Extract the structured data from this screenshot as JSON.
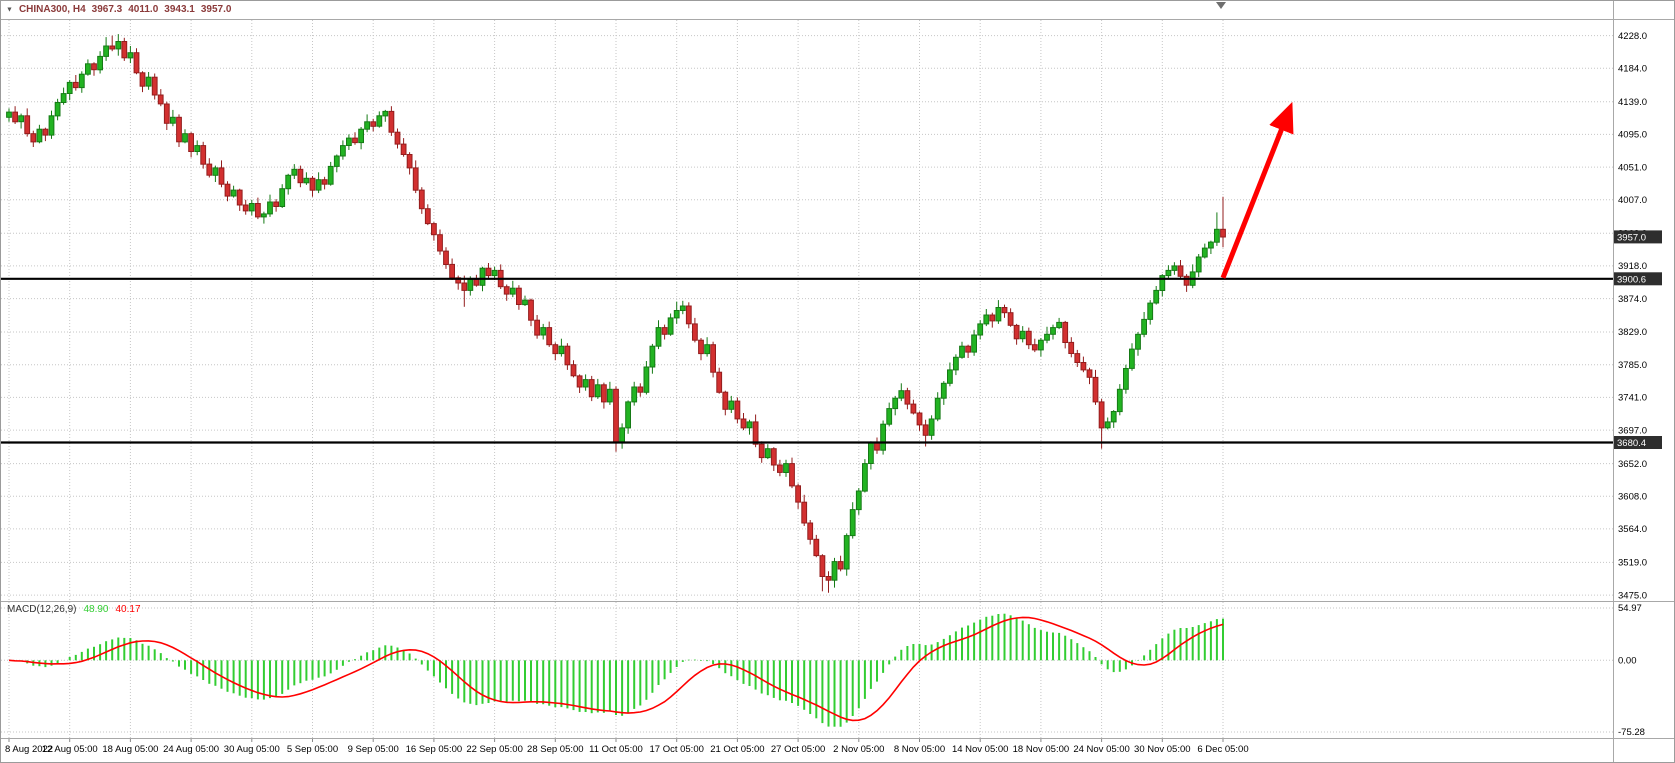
{
  "header": {
    "menu_icon": "▼",
    "symbol_period": "CHINA300, H4",
    "open": "3967.3",
    "high": "4011.0",
    "low": "3943.1",
    "close": "3957.0",
    "color": "#8b3a3a"
  },
  "macd_panel": {
    "name": "MACD(12,26,9)",
    "value_main": "48.90",
    "value_signal": "40.17"
  },
  "colors": {
    "bull": "#22b322",
    "bull_border": "#157a15",
    "bear": "#d23030",
    "bear_border": "#931d1d",
    "grid": "#c6c6c6",
    "hline": "#000000",
    "arrow": "#ff0000",
    "macd_hist": "#32cd32",
    "macd_signal": "#ff0000",
    "tag_bg": "#2e2e2e",
    "axis_text": "#000000"
  },
  "chart_data": {
    "type": "candlestick",
    "title": "CHINA300, H4",
    "symbol": "CHINA300",
    "timeframe": "H4",
    "last_bar_ohlc": {
      "open": 3967.3,
      "high": 4011.0,
      "low": 3943.1,
      "close": 3957.0
    },
    "ylim": [
      3467,
      4249
    ],
    "grid": true,
    "price_ticks": [
      4228,
      4184,
      4139,
      4095,
      4051,
      4007,
      3962,
      3918,
      3874,
      3829,
      3785,
      3741,
      3697,
      3652,
      3608,
      3564,
      3519,
      3475
    ],
    "time_axis": [
      {
        "text": "8 Aug 2022",
        "index": 0
      },
      {
        "text": "12 Aug 05:00",
        "index": 10
      },
      {
        "text": "18 Aug 05:00",
        "index": 20
      },
      {
        "text": "24 Aug 05:00",
        "index": 30
      },
      {
        "text": "30 Aug 05:00",
        "index": 40
      },
      {
        "text": "5 Sep 05:00",
        "index": 50
      },
      {
        "text": "9 Sep 05:00",
        "index": 60
      },
      {
        "text": "16 Sep 05:00",
        "index": 70
      },
      {
        "text": "22 Sep 05:00",
        "index": 80
      },
      {
        "text": "28 Sep 05:00",
        "index": 90
      },
      {
        "text": "11 Oct 05:00",
        "index": 100
      },
      {
        "text": "17 Oct 05:00",
        "index": 110
      },
      {
        "text": "21 Oct 05:00",
        "index": 120
      },
      {
        "text": "27 Oct 05:00",
        "index": 130
      },
      {
        "text": "2 Nov 05:00",
        "index": 140
      },
      {
        "text": "8 Nov 05:00",
        "index": 150
      },
      {
        "text": "14 Nov 05:00",
        "index": 160
      },
      {
        "text": "18 Nov 05:00",
        "index": 170
      },
      {
        "text": "24 Nov 05:00",
        "index": 180
      },
      {
        "text": "30 Nov 05:00",
        "index": 190
      },
      {
        "text": "6 Dec 05:00",
        "index": 200
      }
    ],
    "hlines": [
      {
        "price": 3900.6,
        "label": "3900.6"
      },
      {
        "price": 3680.4,
        "label": "3680.4"
      }
    ],
    "current_price": {
      "price": 3957.0,
      "label": "3957.0"
    },
    "arrow": {
      "from": {
        "index": 200,
        "price": 3902
      },
      "to": {
        "index": 211,
        "price": 4130
      }
    },
    "macd": {
      "params": "12,26,9",
      "last_macd": 48.9,
      "last_signal": 40.17,
      "scale_max": 54.97,
      "scale_min": -75.28,
      "axis_labels": [
        "54.97",
        "0.00",
        "-75.28"
      ]
    },
    "candles": [
      [
        4118,
        4130,
        4112,
        4125
      ],
      [
        4125,
        4133,
        4109,
        4112
      ],
      [
        4112,
        4123,
        4103,
        4120
      ],
      [
        4120,
        4130,
        4092,
        4096
      ],
      [
        4096,
        4100,
        4078,
        4085
      ],
      [
        4085,
        4108,
        4083,
        4102
      ],
      [
        4102,
        4104,
        4086,
        4094
      ],
      [
        4094,
        4127,
        4089,
        4120
      ],
      [
        4120,
        4143,
        4114,
        4138
      ],
      [
        4138,
        4158,
        4135,
        4150
      ],
      [
        4150,
        4168,
        4141,
        4165
      ],
      [
        4165,
        4175,
        4154,
        4158
      ],
      [
        4158,
        4180,
        4151,
        4176
      ],
      [
        4176,
        4196,
        4174,
        4190
      ],
      [
        4190,
        4192,
        4174,
        4182
      ],
      [
        4182,
        4207,
        4177,
        4200
      ],
      [
        4200,
        4226,
        4194,
        4214
      ],
      [
        4214,
        4228,
        4207,
        4210
      ],
      [
        4210,
        4230,
        4201,
        4220
      ],
      [
        4220,
        4225,
        4194,
        4198
      ],
      [
        4198,
        4214,
        4191,
        4205
      ],
      [
        4205,
        4211,
        4176,
        4178
      ],
      [
        4178,
        4180,
        4152,
        4160
      ],
      [
        4160,
        4179,
        4155,
        4172
      ],
      [
        4172,
        4177,
        4142,
        4148
      ],
      [
        4148,
        4156,
        4133,
        4136
      ],
      [
        4136,
        4139,
        4101,
        4110
      ],
      [
        4110,
        4128,
        4106,
        4118
      ],
      [
        4118,
        4122,
        4078,
        4085
      ],
      [
        4085,
        4102,
        4083,
        4096
      ],
      [
        4096,
        4098,
        4064,
        4072
      ],
      [
        4072,
        4087,
        4067,
        4080
      ],
      [
        4080,
        4085,
        4049,
        4055
      ],
      [
        4055,
        4063,
        4037,
        4040
      ],
      [
        4040,
        4053,
        4031,
        4050
      ],
      [
        4050,
        4060,
        4024,
        4028
      ],
      [
        4028,
        4032,
        4005,
        4012
      ],
      [
        4012,
        4026,
        4010,
        4020
      ],
      [
        4020,
        4022,
        3992,
        4000
      ],
      [
        4000,
        4007,
        3987,
        3992
      ],
      [
        3992,
        4007,
        3986,
        4002
      ],
      [
        4002,
        4010,
        3981,
        3984
      ],
      [
        3984,
        3991,
        3975,
        3988
      ],
      [
        3988,
        4014,
        3984,
        4004
      ],
      [
        4004,
        4008,
        3991,
        3998
      ],
      [
        3998,
        4028,
        3996,
        4022
      ],
      [
        4022,
        4042,
        4014,
        4040
      ],
      [
        4040,
        4055,
        4035,
        4048
      ],
      [
        4048,
        4053,
        4024,
        4030
      ],
      [
        4030,
        4044,
        4027,
        4036
      ],
      [
        4036,
        4039,
        4011,
        4020
      ],
      [
        4020,
        4044,
        4016,
        4034
      ],
      [
        4034,
        4038,
        4021,
        4028
      ],
      [
        4028,
        4058,
        4026,
        4052
      ],
      [
        4052,
        4068,
        4044,
        4066
      ],
      [
        4066,
        4087,
        4061,
        4080
      ],
      [
        4080,
        4095,
        4074,
        4090
      ],
      [
        4090,
        4098,
        4081,
        4084
      ],
      [
        4084,
        4105,
        4075,
        4102
      ],
      [
        4102,
        4122,
        4098,
        4112
      ],
      [
        4112,
        4116,
        4099,
        4106
      ],
      [
        4106,
        4126,
        4104,
        4120
      ],
      [
        4120,
        4128,
        4112,
        4126
      ],
      [
        4126,
        4133,
        4093,
        4098
      ],
      [
        4098,
        4103,
        4076,
        4082
      ],
      [
        4082,
        4090,
        4065,
        4068
      ],
      [
        4068,
        4071,
        4041,
        4050
      ],
      [
        4050,
        4060,
        4016,
        4020
      ],
      [
        4020,
        4024,
        3988,
        3995
      ],
      [
        3995,
        4001,
        3973,
        3975
      ],
      [
        3975,
        3977,
        3952,
        3960
      ],
      [
        3960,
        3967,
        3933,
        3938
      ],
      [
        3938,
        3943,
        3914,
        3920
      ],
      [
        3920,
        3928,
        3899,
        3902
      ],
      [
        3902,
        3905,
        3886,
        3895
      ],
      [
        3895,
        3905,
        3863,
        3885
      ],
      [
        3885,
        3904,
        3878,
        3900
      ],
      [
        3900,
        3906,
        3890,
        3892
      ],
      [
        3892,
        3917,
        3884,
        3915
      ],
      [
        3915,
        3922,
        3900,
        3905
      ],
      [
        3905,
        3917,
        3899,
        3912
      ],
      [
        3912,
        3920,
        3887,
        3890
      ],
      [
        3890,
        3893,
        3871,
        3880
      ],
      [
        3880,
        3898,
        3876,
        3888
      ],
      [
        3888,
        3892,
        3859,
        3866
      ],
      [
        3866,
        3878,
        3864,
        3872
      ],
      [
        3872,
        3874,
        3837,
        3845
      ],
      [
        3845,
        3852,
        3820,
        3825
      ],
      [
        3825,
        3840,
        3819,
        3835
      ],
      [
        3835,
        3843,
        3809,
        3812
      ],
      [
        3812,
        3815,
        3791,
        3800
      ],
      [
        3800,
        3820,
        3796,
        3810
      ],
      [
        3810,
        3814,
        3778,
        3785
      ],
      [
        3785,
        3791,
        3768,
        3770
      ],
      [
        3770,
        3772,
        3747,
        3755
      ],
      [
        3755,
        3772,
        3750,
        3765
      ],
      [
        3765,
        3770,
        3736,
        3742
      ],
      [
        3742,
        3766,
        3739,
        3758
      ],
      [
        3758,
        3761,
        3726,
        3735
      ],
      [
        3735,
        3762,
        3731,
        3752
      ],
      [
        3752,
        3756,
        3668,
        3680
      ],
      [
        3680,
        3706,
        3672,
        3700
      ],
      [
        3700,
        3737,
        3692,
        3735
      ],
      [
        3735,
        3762,
        3730,
        3755
      ],
      [
        3755,
        3760,
        3742,
        3748
      ],
      [
        3748,
        3790,
        3745,
        3782
      ],
      [
        3782,
        3813,
        3773,
        3810
      ],
      [
        3810,
        3845,
        3806,
        3835
      ],
      [
        3835,
        3839,
        3819,
        3826
      ],
      [
        3826,
        3854,
        3824,
        3848
      ],
      [
        3848,
        3870,
        3840,
        3858
      ],
      [
        3858,
        3871,
        3853,
        3864
      ],
      [
        3864,
        3869,
        3834,
        3840
      ],
      [
        3840,
        3848,
        3815,
        3818
      ],
      [
        3818,
        3821,
        3791,
        3800
      ],
      [
        3800,
        3822,
        3796,
        3812
      ],
      [
        3812,
        3816,
        3768,
        3775
      ],
      [
        3775,
        3781,
        3746,
        3748
      ],
      [
        3748,
        3750,
        3717,
        3725
      ],
      [
        3725,
        3743,
        3720,
        3736
      ],
      [
        3736,
        3741,
        3706,
        3712
      ],
      [
        3712,
        3720,
        3697,
        3700
      ],
      [
        3700,
        3711,
        3691,
        3708
      ],
      [
        3708,
        3718,
        3674,
        3678
      ],
      [
        3678,
        3682,
        3653,
        3660
      ],
      [
        3660,
        3678,
        3658,
        3672
      ],
      [
        3672,
        3674,
        3642,
        3650
      ],
      [
        3650,
        3657,
        3635,
        3640
      ],
      [
        3640,
        3657,
        3634,
        3652
      ],
      [
        3652,
        3660,
        3619,
        3622
      ],
      [
        3622,
        3625,
        3591,
        3600
      ],
      [
        3600,
        3610,
        3568,
        3572
      ],
      [
        3572,
        3576,
        3543,
        3550
      ],
      [
        3550,
        3556,
        3526,
        3528
      ],
      [
        3528,
        3530,
        3480,
        3500
      ],
      [
        3500,
        3507,
        3478,
        3495
      ],
      [
        3495,
        3525,
        3485,
        3520
      ],
      [
        3520,
        3528,
        3507,
        3510
      ],
      [
        3510,
        3558,
        3501,
        3555
      ],
      [
        3555,
        3600,
        3551,
        3590
      ],
      [
        3590,
        3619,
        3583,
        3615
      ],
      [
        3615,
        3658,
        3613,
        3652
      ],
      [
        3652,
        3682,
        3644,
        3680
      ],
      [
        3680,
        3687,
        3665,
        3670
      ],
      [
        3670,
        3710,
        3664,
        3705
      ],
      [
        3705,
        3734,
        3702,
        3726
      ],
      [
        3726,
        3743,
        3717,
        3740
      ],
      [
        3740,
        3760,
        3736,
        3750
      ],
      [
        3750,
        3754,
        3725,
        3732
      ],
      [
        3732,
        3738,
        3718,
        3720
      ],
      [
        3720,
        3722,
        3696,
        3704
      ],
      [
        3704,
        3711,
        3675,
        3690
      ],
      [
        3690,
        3717,
        3684,
        3712
      ],
      [
        3712,
        3748,
        3709,
        3740
      ],
      [
        3740,
        3763,
        3731,
        3760
      ],
      [
        3760,
        3788,
        3756,
        3778
      ],
      [
        3778,
        3799,
        3771,
        3795
      ],
      [
        3795,
        3816,
        3793,
        3810
      ],
      [
        3810,
        3812,
        3794,
        3802
      ],
      [
        3802,
        3832,
        3797,
        3825
      ],
      [
        3825,
        3845,
        3819,
        3840
      ],
      [
        3840,
        3860,
        3837,
        3852
      ],
      [
        3852,
        3855,
        3835,
        3844
      ],
      [
        3844,
        3872,
        3840,
        3862
      ],
      [
        3862,
        3866,
        3848,
        3855
      ],
      [
        3855,
        3861,
        3836,
        3838
      ],
      [
        3838,
        3840,
        3812,
        3820
      ],
      [
        3820,
        3837,
        3815,
        3830
      ],
      [
        3830,
        3835,
        3806,
        3812
      ],
      [
        3812,
        3820,
        3802,
        3805
      ],
      [
        3805,
        3821,
        3796,
        3818
      ],
      [
        3818,
        3836,
        3814,
        3826
      ],
      [
        3826,
        3839,
        3819,
        3835
      ],
      [
        3835,
        3848,
        3833,
        3842
      ],
      [
        3842,
        3844,
        3807,
        3815
      ],
      [
        3815,
        3822,
        3795,
        3800
      ],
      [
        3800,
        3805,
        3782,
        3788
      ],
      [
        3788,
        3796,
        3775,
        3778
      ],
      [
        3778,
        3781,
        3759,
        3768
      ],
      [
        3768,
        3778,
        3731,
        3735
      ],
      [
        3735,
        3739,
        3672,
        3700
      ],
      [
        3700,
        3714,
        3698,
        3708
      ],
      [
        3708,
        3724,
        3700,
        3722
      ],
      [
        3722,
        3759,
        3717,
        3752
      ],
      [
        3752,
        3785,
        3746,
        3780
      ],
      [
        3780,
        3814,
        3777,
        3806
      ],
      [
        3806,
        3829,
        3797,
        3826
      ],
      [
        3826,
        3856,
        3822,
        3846
      ],
      [
        3846,
        3872,
        3839,
        3868
      ],
      [
        3868,
        3891,
        3866,
        3885
      ],
      [
        3885,
        3907,
        3877,
        3905
      ],
      [
        3905,
        3919,
        3900,
        3912
      ],
      [
        3912,
        3923,
        3906,
        3918
      ],
      [
        3918,
        3926,
        3901,
        3904
      ],
      [
        3904,
        3907,
        3883,
        3892
      ],
      [
        3892,
        3920,
        3888,
        3910
      ],
      [
        3910,
        3934,
        3903,
        3930
      ],
      [
        3930,
        3948,
        3928,
        3942
      ],
      [
        3942,
        3952,
        3934,
        3950
      ],
      [
        3950,
        3990,
        3945,
        3967.3
      ],
      [
        3967.3,
        4011.0,
        3943.1,
        3957.0
      ]
    ]
  }
}
